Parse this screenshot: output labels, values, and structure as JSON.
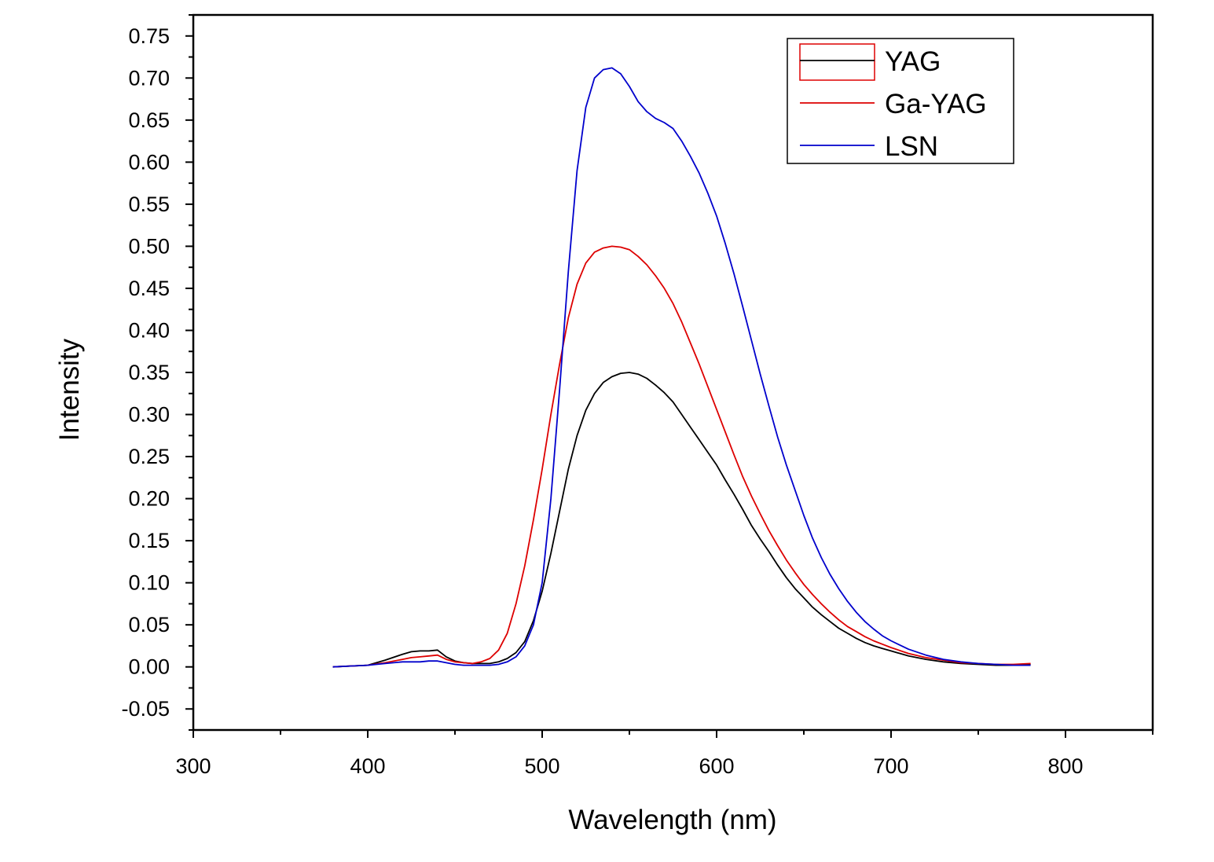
{
  "chart_data": {
    "type": "line",
    "xlabel": "Wavelength (nm)",
    "ylabel": "Intensity",
    "xlim": [
      300,
      850
    ],
    "ylim": [
      -0.075,
      0.775
    ],
    "xticks": [
      "300",
      "400",
      "500",
      "600",
      "700",
      "800"
    ],
    "xtick_values": [
      300,
      400,
      500,
      600,
      700,
      800
    ],
    "yticks": [
      "-0.05",
      "0.00",
      "0.05",
      "0.10",
      "0.15",
      "0.20",
      "0.25",
      "0.30",
      "0.35",
      "0.40",
      "0.45",
      "0.50",
      "0.55",
      "0.60",
      "0.65",
      "0.70",
      "0.75"
    ],
    "ytick_values": [
      -0.05,
      0,
      0.05,
      0.1,
      0.15,
      0.2,
      0.25,
      0.3,
      0.35,
      0.4,
      0.45,
      0.5,
      0.55,
      0.6,
      0.65,
      0.7,
      0.75
    ],
    "grid": false,
    "legend_position": "top-right",
    "series": [
      {
        "name": "YAG",
        "color": "#000000",
        "x": [
          380,
          390,
          400,
          410,
          420,
          425,
          430,
          435,
          440,
          445,
          450,
          455,
          460,
          465,
          470,
          475,
          480,
          485,
          490,
          495,
          500,
          505,
          510,
          515,
          520,
          525,
          530,
          535,
          540,
          545,
          550,
          555,
          560,
          565,
          570,
          575,
          580,
          585,
          590,
          595,
          600,
          605,
          610,
          615,
          620,
          625,
          630,
          635,
          640,
          645,
          650,
          655,
          660,
          665,
          670,
          675,
          680,
          685,
          690,
          695,
          700,
          710,
          720,
          730,
          740,
          750,
          760,
          770,
          780
        ],
        "y": [
          0.0,
          0.001,
          0.002,
          0.008,
          0.015,
          0.018,
          0.019,
          0.019,
          0.02,
          0.012,
          0.007,
          0.005,
          0.004,
          0.004,
          0.004,
          0.006,
          0.01,
          0.017,
          0.03,
          0.055,
          0.09,
          0.135,
          0.185,
          0.235,
          0.275,
          0.305,
          0.325,
          0.338,
          0.345,
          0.349,
          0.35,
          0.348,
          0.343,
          0.335,
          0.326,
          0.315,
          0.3,
          0.285,
          0.27,
          0.255,
          0.24,
          0.222,
          0.205,
          0.187,
          0.168,
          0.152,
          0.137,
          0.121,
          0.106,
          0.093,
          0.082,
          0.071,
          0.062,
          0.054,
          0.046,
          0.04,
          0.034,
          0.029,
          0.025,
          0.022,
          0.019,
          0.013,
          0.009,
          0.006,
          0.004,
          0.003,
          0.002,
          0.002,
          0.003
        ]
      },
      {
        "name": "Ga-YAG",
        "color": "#dd0000",
        "x": [
          380,
          390,
          400,
          410,
          420,
          425,
          430,
          435,
          440,
          445,
          450,
          455,
          460,
          465,
          470,
          475,
          480,
          485,
          490,
          495,
          500,
          505,
          510,
          515,
          520,
          525,
          530,
          535,
          540,
          545,
          550,
          555,
          560,
          565,
          570,
          575,
          580,
          585,
          590,
          595,
          600,
          605,
          610,
          615,
          620,
          625,
          630,
          635,
          640,
          645,
          650,
          655,
          660,
          665,
          670,
          675,
          680,
          685,
          690,
          695,
          700,
          710,
          720,
          730,
          740,
          750,
          760,
          770,
          780
        ],
        "y": [
          0.0,
          0.001,
          0.002,
          0.005,
          0.009,
          0.011,
          0.012,
          0.013,
          0.014,
          0.009,
          0.006,
          0.005,
          0.004,
          0.006,
          0.01,
          0.02,
          0.04,
          0.075,
          0.12,
          0.175,
          0.235,
          0.3,
          0.36,
          0.415,
          0.455,
          0.48,
          0.493,
          0.498,
          0.5,
          0.499,
          0.496,
          0.488,
          0.478,
          0.465,
          0.45,
          0.432,
          0.41,
          0.385,
          0.36,
          0.333,
          0.306,
          0.279,
          0.252,
          0.226,
          0.203,
          0.182,
          0.162,
          0.144,
          0.127,
          0.112,
          0.098,
          0.086,
          0.075,
          0.065,
          0.056,
          0.048,
          0.042,
          0.036,
          0.031,
          0.027,
          0.023,
          0.016,
          0.011,
          0.008,
          0.005,
          0.004,
          0.003,
          0.003,
          0.004
        ]
      },
      {
        "name": "LSN",
        "color": "#0000cc",
        "x": [
          380,
          390,
          400,
          410,
          420,
          425,
          430,
          435,
          440,
          445,
          450,
          455,
          460,
          465,
          470,
          475,
          480,
          485,
          490,
          495,
          500,
          505,
          510,
          515,
          520,
          525,
          530,
          535,
          540,
          545,
          550,
          555,
          560,
          565,
          570,
          575,
          580,
          585,
          590,
          595,
          600,
          605,
          610,
          615,
          620,
          625,
          630,
          635,
          640,
          645,
          650,
          655,
          660,
          665,
          670,
          675,
          680,
          685,
          690,
          695,
          700,
          710,
          720,
          730,
          740,
          750,
          760,
          770,
          780
        ],
        "y": [
          0.0,
          0.001,
          0.002,
          0.004,
          0.006,
          0.006,
          0.006,
          0.007,
          0.007,
          0.005,
          0.003,
          0.002,
          0.002,
          0.002,
          0.002,
          0.003,
          0.006,
          0.012,
          0.025,
          0.05,
          0.1,
          0.2,
          0.33,
          0.47,
          0.59,
          0.665,
          0.7,
          0.71,
          0.712,
          0.705,
          0.69,
          0.672,
          0.66,
          0.652,
          0.647,
          0.64,
          0.625,
          0.607,
          0.587,
          0.563,
          0.536,
          0.503,
          0.467,
          0.428,
          0.388,
          0.348,
          0.31,
          0.273,
          0.24,
          0.21,
          0.18,
          0.153,
          0.13,
          0.11,
          0.093,
          0.078,
          0.065,
          0.054,
          0.045,
          0.037,
          0.031,
          0.021,
          0.014,
          0.009,
          0.006,
          0.004,
          0.003,
          0.002,
          0.002
        ]
      }
    ]
  }
}
